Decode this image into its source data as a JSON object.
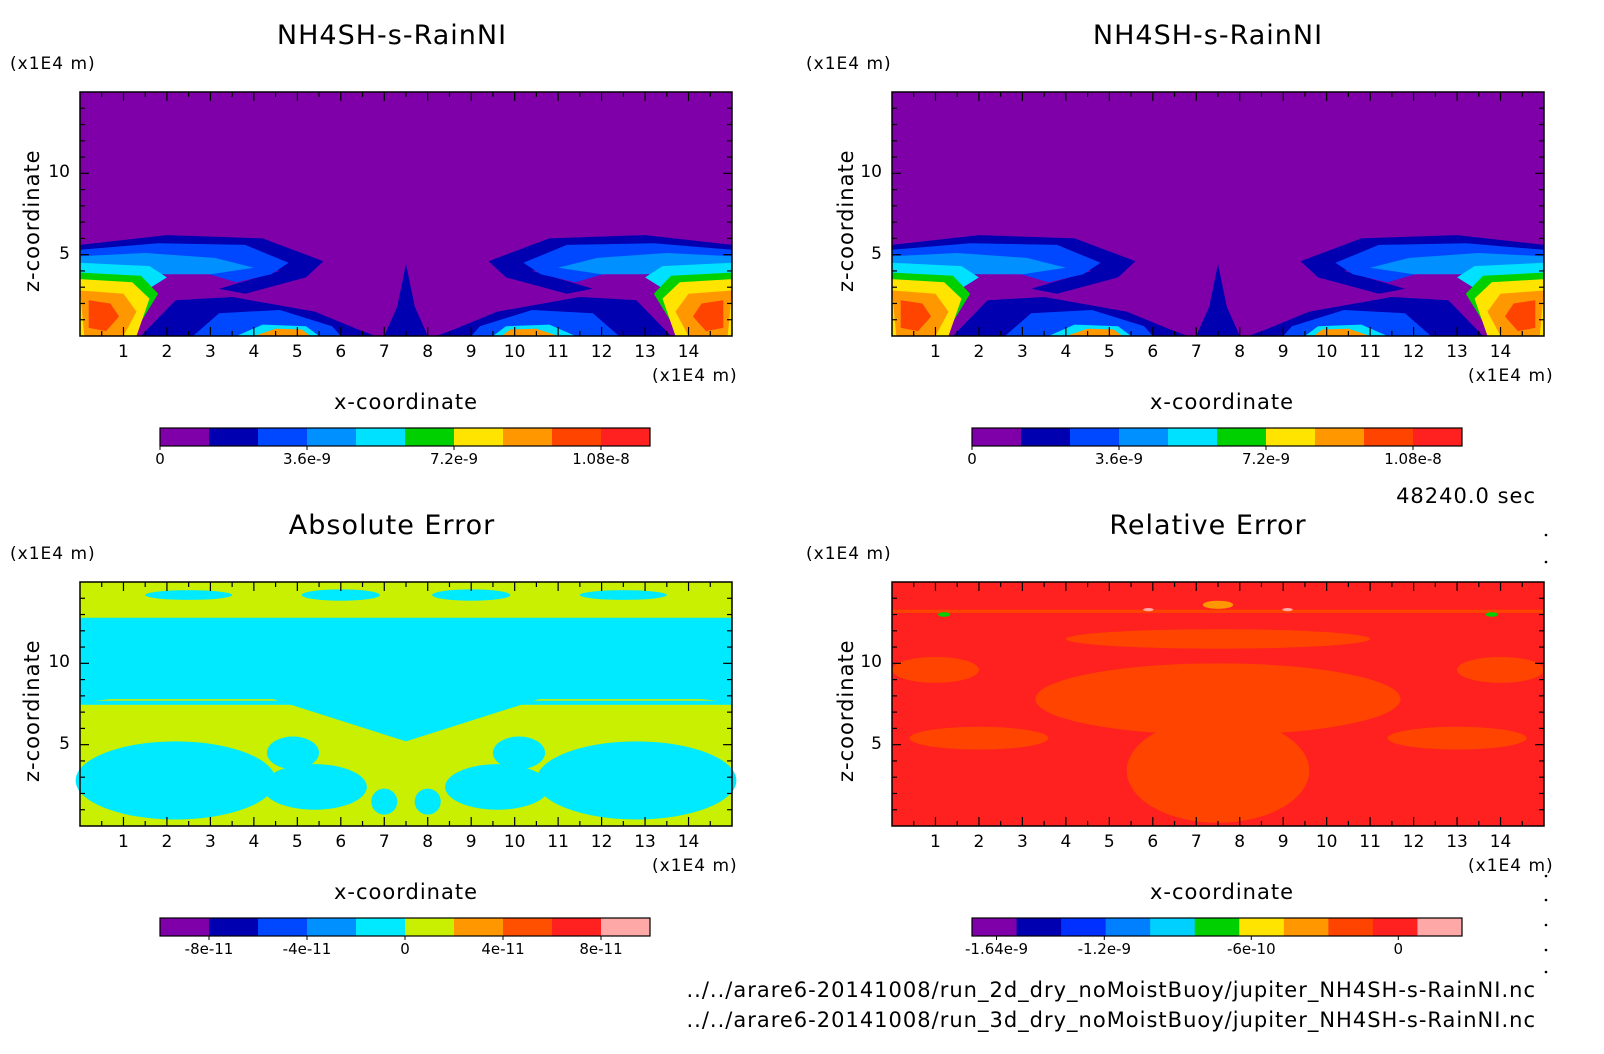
{
  "chart_data": [
    {
      "type": "heatmap",
      "title": "NH4SH-s-RainNI",
      "xlabel": "x-coordinate",
      "ylabel": "z-coordinate",
      "x_unit": "(x1E4 m)",
      "y_unit": "(x1E4 m)",
      "xlim": [
        0,
        15
      ],
      "ylim": [
        0,
        15
      ],
      "x_ticks": [
        "1",
        "2",
        "3",
        "4",
        "5",
        "6",
        "7",
        "8",
        "9",
        "10",
        "11",
        "12",
        "13",
        "14"
      ],
      "y_ticks": [
        "5",
        "10"
      ],
      "colorbar": {
        "min": 0,
        "max": 1.2e-08,
        "tick_labels": [
          "0",
          "3.6e-9",
          "7.2e-9",
          "1.08e-8"
        ],
        "tick_values": [
          0,
          3.6e-09,
          7.2e-09,
          1.08e-08
        ],
        "colors": [
          "#7f00a8",
          "#0000b0",
          "#0048ff",
          "#0090ff",
          "#00e0ff",
          "#00d000",
          "#ffe400",
          "#ff9800",
          "#ff4400",
          "#ff2020"
        ]
      }
    },
    {
      "type": "heatmap",
      "title": "NH4SH-s-RainNI",
      "xlabel": "x-coordinate",
      "ylabel": "z-coordinate",
      "x_unit": "(x1E4 m)",
      "y_unit": "(x1E4 m)",
      "xlim": [
        0,
        15
      ],
      "ylim": [
        0,
        15
      ],
      "x_ticks": [
        "1",
        "2",
        "3",
        "4",
        "5",
        "6",
        "7",
        "8",
        "9",
        "10",
        "11",
        "12",
        "13",
        "14"
      ],
      "y_ticks": [
        "5",
        "10"
      ],
      "colorbar": {
        "min": 0,
        "max": 1.2e-08,
        "tick_labels": [
          "0",
          "3.6e-9",
          "7.2e-9",
          "1.08e-8"
        ],
        "tick_values": [
          0,
          3.6e-09,
          7.2e-09,
          1.08e-08
        ],
        "colors": [
          "#7f00a8",
          "#0000b0",
          "#0048ff",
          "#0090ff",
          "#00e0ff",
          "#00d000",
          "#ffe400",
          "#ff9800",
          "#ff4400",
          "#ff2020"
        ]
      }
    },
    {
      "type": "heatmap",
      "title": "Absolute Error",
      "xlabel": "x-coordinate",
      "ylabel": "z-coordinate",
      "x_unit": "(x1E4 m)",
      "y_unit": "(x1E4 m)",
      "xlim": [
        0,
        15
      ],
      "ylim": [
        0,
        15
      ],
      "x_ticks": [
        "1",
        "2",
        "3",
        "4",
        "5",
        "6",
        "7",
        "8",
        "9",
        "10",
        "11",
        "12",
        "13",
        "14"
      ],
      "y_ticks": [
        "5",
        "10"
      ],
      "colorbar": {
        "min": -1e-10,
        "max": 1e-10,
        "tick_labels": [
          "-8e-11",
          "-4e-11",
          "0",
          "4e-11",
          "8e-11"
        ],
        "tick_values": [
          -8e-11,
          -4e-11,
          0,
          4e-11,
          8e-11
        ],
        "colors": [
          "#7f00a8",
          "#0000b0",
          "#0048ff",
          "#0090ff",
          "#00eaff",
          "#c8f000",
          "#ff9800",
          "#ff5000",
          "#ff2020",
          "#ffa8a8"
        ]
      }
    },
    {
      "type": "heatmap",
      "title": "Relative Error",
      "xlabel": "x-coordinate",
      "ylabel": "z-coordinate",
      "x_unit": "(x1E4 m)",
      "y_unit": "(x1E4 m)",
      "xlim": [
        0,
        15
      ],
      "ylim": [
        0,
        15
      ],
      "x_ticks": [
        "1",
        "2",
        "3",
        "4",
        "5",
        "6",
        "7",
        "8",
        "9",
        "10",
        "11",
        "12",
        "13",
        "14"
      ],
      "y_ticks": [
        "5",
        "10"
      ],
      "colorbar": {
        "min": -1.74e-09,
        "max": 2.6e-10,
        "tick_labels": [
          "-1.64e-9",
          "-1.2e-9",
          "-6e-10",
          "0"
        ],
        "tick_values": [
          -1.64e-09,
          -1.2e-09,
          -6e-10,
          0
        ],
        "colors": [
          "#7f00a8",
          "#0000b0",
          "#0030ff",
          "#0080ff",
          "#00d0ff",
          "#00d000",
          "#ffe400",
          "#ff9800",
          "#ff4400",
          "#ff2020",
          "#ffa8a8"
        ]
      }
    }
  ],
  "time_label": "48240.0 sec",
  "footer": {
    "line1": "../../arare6-20141008/run_2d_dry_noMoistBuoy/jupiter_NH4SH-s-RainNI.nc",
    "line2": "../../arare6-20141008/run_3d_dry_noMoistBuoy/jupiter_NH4SH-s-RainNI.nc"
  }
}
